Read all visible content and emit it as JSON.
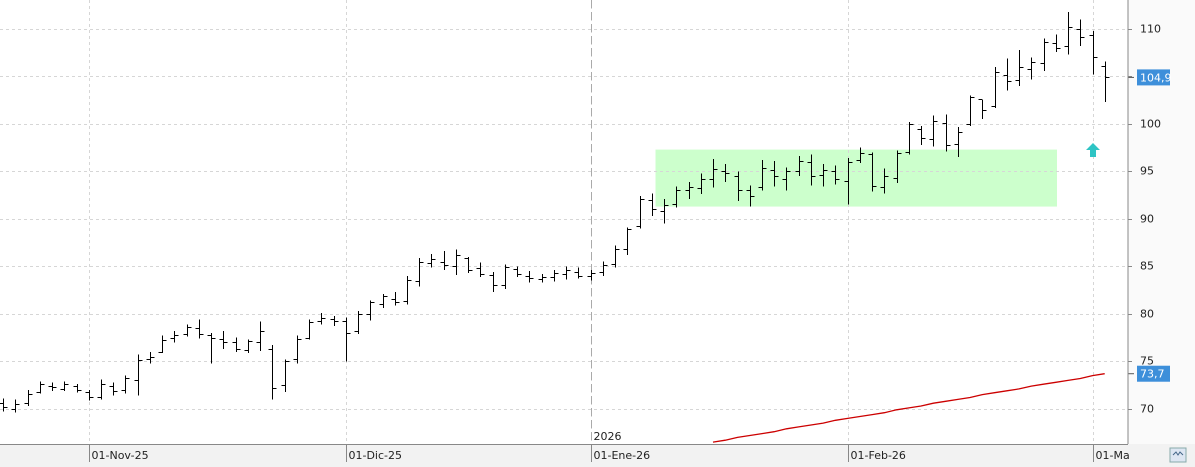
{
  "chart_data": {
    "type": "ohlc",
    "xlim": [
      -0.25,
      91.9
    ],
    "ylim": [
      66.3,
      113.05
    ],
    "yticks": [
      70,
      75,
      80,
      85,
      90,
      95,
      100,
      105,
      110
    ],
    "xticks": [
      {
        "value": 7,
        "label": "01-Nov-25"
      },
      {
        "value": 28,
        "label": "01-Dic-25"
      },
      {
        "value": 48,
        "label": "01-Ene-26"
      },
      {
        "value": 69,
        "label": "01-Feb-26"
      },
      {
        "value": 89,
        "label": "01-Ma"
      }
    ],
    "year_marker": {
      "value": 48,
      "label": "2026"
    },
    "grid": true,
    "color": "#000000",
    "open": [
      70.6,
      70.0,
      70.6,
      71.8,
      72.4,
      72.1,
      72.4,
      71.8,
      71.2,
      72.4,
      72.0,
      73.0,
      75.2,
      76.0,
      77.5,
      77.9,
      78.5,
      77.8,
      77.4,
      77.0,
      76.2,
      77.0,
      76.3,
      72.5,
      75.2,
      77.5,
      79.2,
      79.5,
      79.2,
      78.2,
      80.0,
      81.0,
      81.6,
      81.4,
      83.5,
      85.4,
      85.5,
      85.0,
      85.9,
      84.8,
      84.1,
      83.0,
      84.7,
      84.0,
      83.7,
      83.9,
      84.2,
      84.4,
      84.0,
      84.4,
      85.3,
      86.8,
      89.3,
      92.0,
      90.8,
      91.6,
      93.0,
      93.3,
      94.2,
      95.0,
      94.5,
      93.0,
      93.4,
      95.2,
      94.2,
      95.0,
      96.0,
      94.6,
      95.0,
      94.0,
      96.2,
      96.8,
      93.4,
      94.3,
      97.0,
      99.5,
      98.4,
      100.1,
      97.9,
      100.0,
      102.6,
      101.9,
      105.2,
      104.6,
      105.8,
      106.4,
      108.5,
      108.2,
      110.0,
      109.4,
      106.1
    ],
    "high": [
      71.1,
      71.0,
      72.0,
      72.9,
      72.8,
      72.9,
      72.6,
      72.0,
      73.1,
      72.8,
      73.5,
      75.7,
      76.0,
      77.7,
      78.2,
      78.9,
      79.4,
      78.0,
      78.2,
      77.5,
      77.3,
      79.2,
      76.7,
      75.2,
      77.7,
      79.4,
      80.1,
      79.8,
      79.6,
      80.3,
      81.4,
      82.1,
      82.3,
      84.0,
      85.9,
      86.3,
      86.6,
      86.8,
      86.0,
      85.4,
      84.4,
      85.2,
      85.0,
      84.5,
      84.2,
      84.6,
      85.0,
      84.9,
      84.6,
      85.5,
      87.2,
      89.1,
      92.4,
      92.7,
      92.1,
      93.4,
      93.9,
      94.8,
      96.3,
      95.8,
      95.0,
      93.5,
      96.2,
      96.1,
      95.4,
      96.6,
      96.8,
      95.8,
      95.6,
      96.4,
      97.5,
      97.0,
      95.3,
      97.2,
      100.2,
      99.8,
      100.9,
      101.0,
      99.7,
      103.0,
      102.5,
      106.0,
      106.9,
      107.8,
      107.0,
      109.0,
      109.4,
      111.8,
      111.0,
      109.8,
      106.6
    ],
    "low": [
      69.7,
      69.6,
      70.3,
      71.6,
      71.9,
      71.9,
      71.7,
      70.9,
      71.0,
      71.4,
      71.6,
      71.4,
      74.8,
      75.9,
      77.0,
      77.6,
      77.4,
      74.8,
      76.3,
      76.0,
      75.9,
      76.1,
      71.0,
      71.8,
      74.8,
      77.3,
      78.9,
      78.7,
      75.0,
      77.9,
      79.3,
      80.6,
      80.9,
      81.0,
      82.9,
      84.9,
      84.6,
      84.1,
      84.3,
      83.9,
      82.3,
      82.6,
      83.9,
      83.3,
      83.3,
      83.4,
      83.6,
      83.7,
      83.5,
      84.0,
      84.9,
      86.2,
      89.0,
      90.3,
      89.5,
      91.2,
      92.1,
      92.6,
      93.3,
      93.9,
      91.9,
      91.3,
      93.0,
      93.4,
      93.0,
      94.5,
      93.5,
      93.4,
      93.6,
      91.5,
      95.9,
      92.9,
      92.7,
      93.8,
      96.8,
      97.8,
      97.6,
      97.1,
      96.5,
      99.8,
      100.5,
      101.7,
      103.5,
      104.0,
      104.7,
      105.6,
      107.6,
      107.3,
      108.2,
      105.2,
      102.3
    ],
    "close": [
      70.2,
      70.5,
      71.6,
      72.6,
      72.3,
      72.6,
      72.0,
      71.2,
      72.6,
      71.9,
      73.2,
      75.1,
      75.5,
      77.3,
      77.8,
      78.6,
      77.9,
      77.5,
      77.0,
      76.3,
      77.1,
      78.2,
      72.2,
      75.0,
      77.4,
      79.1,
      79.6,
      79.2,
      78.0,
      80.0,
      81.2,
      81.9,
      81.3,
      83.6,
      85.5,
      85.8,
      85.2,
      86.2,
      84.6,
      84.2,
      83.0,
      84.9,
      84.2,
      83.8,
      83.9,
      84.3,
      84.6,
      84.0,
      84.3,
      85.2,
      86.8,
      88.9,
      92.1,
      91.0,
      91.5,
      93.0,
      93.4,
      94.2,
      95.3,
      94.8,
      93.0,
      92.4,
      95.4,
      94.5,
      95.0,
      96.1,
      94.5,
      95.1,
      94.2,
      96.0,
      96.9,
      93.5,
      94.5,
      96.9,
      100.0,
      98.5,
      100.3,
      97.8,
      99.2,
      102.8,
      101.5,
      105.5,
      104.5,
      106.0,
      106.5,
      108.6,
      108.0,
      110.2,
      109.2,
      107.0,
      104.9
    ],
    "close_label": "104,9",
    "close_label_color": "#3d8fda",
    "overlay": {
      "color": "#cc0000",
      "value_label": "73,7",
      "values": [
        null,
        null,
        null,
        null,
        null,
        null,
        null,
        null,
        null,
        null,
        null,
        null,
        null,
        null,
        null,
        null,
        null,
        null,
        null,
        null,
        null,
        null,
        null,
        null,
        null,
        null,
        null,
        null,
        null,
        null,
        null,
        null,
        null,
        null,
        null,
        null,
        null,
        null,
        null,
        null,
        null,
        null,
        null,
        null,
        null,
        null,
        null,
        null,
        null,
        null,
        null,
        null,
        null,
        null,
        null,
        null,
        null,
        null,
        66.5,
        66.7,
        67.0,
        67.2,
        67.4,
        67.6,
        67.9,
        68.1,
        68.3,
        68.5,
        68.8,
        69.0,
        69.2,
        69.4,
        69.6,
        69.9,
        70.1,
        70.3,
        70.6,
        70.8,
        71.0,
        71.2,
        71.5,
        71.7,
        71.9,
        72.1,
        72.4,
        72.6,
        72.8,
        73.0,
        73.2,
        73.5,
        73.7
      ]
    },
    "highlight_zone": {
      "xlim": [
        53.3,
        86.1
      ],
      "ylim": [
        91.3,
        97.3
      ],
      "color": "#ccffcc"
    }
  }
}
